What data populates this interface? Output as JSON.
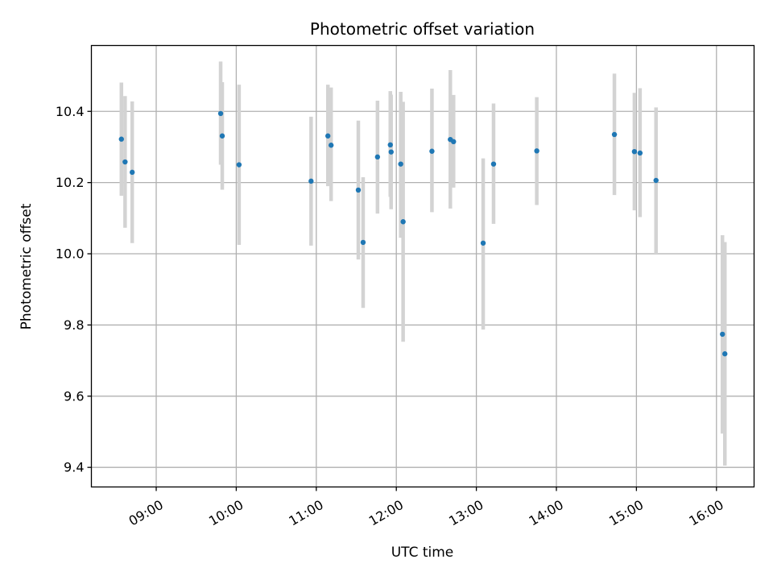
{
  "chart_data": {
    "type": "scatter",
    "title": "Photometric offset variation",
    "xlabel": "UTC time",
    "ylabel": "Photometric offset",
    "x_unit": "hours since 00:00 UTC",
    "xlim": [
      8.19,
      16.47
    ],
    "ylim": [
      9.345,
      10.585
    ],
    "grid": true,
    "legend": "none",
    "x_ticks": [
      {
        "value": 9,
        "label": "09:00"
      },
      {
        "value": 10,
        "label": "10:00"
      },
      {
        "value": 11,
        "label": "11:00"
      },
      {
        "value": 12,
        "label": "12:00"
      },
      {
        "value": 13,
        "label": "13:00"
      },
      {
        "value": 14,
        "label": "14:00"
      },
      {
        "value": 15,
        "label": "15:00"
      },
      {
        "value": 16,
        "label": "16:00"
      }
    ],
    "y_ticks": [
      {
        "value": 9.4,
        "label": "9.4"
      },
      {
        "value": 9.6,
        "label": "9.6"
      },
      {
        "value": 9.8,
        "label": "9.8"
      },
      {
        "value": 10.0,
        "label": "10.0"
      },
      {
        "value": 10.2,
        "label": "10.2"
      },
      {
        "value": 10.4,
        "label": "10.4"
      }
    ],
    "marker_color": "#1f77b4",
    "errorbar_color": "#d3d3d3",
    "grid_color": "#b0b0b0",
    "points": [
      {
        "x": 8.565,
        "y": 10.322,
        "low": 10.163,
        "high": 10.481
      },
      {
        "x": 8.611,
        "y": 10.258,
        "low": 10.073,
        "high": 10.443
      },
      {
        "x": 8.7,
        "y": 10.229,
        "low": 10.03,
        "high": 10.428
      },
      {
        "x": 9.805,
        "y": 10.394,
        "low": 10.25,
        "high": 10.54
      },
      {
        "x": 9.825,
        "y": 10.331,
        "low": 10.18,
        "high": 10.482
      },
      {
        "x": 10.035,
        "y": 10.25,
        "low": 10.025,
        "high": 10.475
      },
      {
        "x": 10.935,
        "y": 10.204,
        "low": 10.023,
        "high": 10.385
      },
      {
        "x": 11.145,
        "y": 10.331,
        "low": 10.19,
        "high": 10.475
      },
      {
        "x": 11.185,
        "y": 10.305,
        "low": 10.148,
        "high": 10.467
      },
      {
        "x": 11.525,
        "y": 10.179,
        "low": 9.984,
        "high": 10.374
      },
      {
        "x": 11.585,
        "y": 10.032,
        "low": 9.848,
        "high": 10.215
      },
      {
        "x": 11.765,
        "y": 10.272,
        "low": 10.113,
        "high": 10.43
      },
      {
        "x": 11.925,
        "y": 10.306,
        "low": 10.16,
        "high": 10.457
      },
      {
        "x": 11.935,
        "y": 10.286,
        "low": 10.125,
        "high": 10.447
      },
      {
        "x": 12.055,
        "y": 10.252,
        "low": 10.045,
        "high": 10.455
      },
      {
        "x": 12.085,
        "y": 10.09,
        "low": 9.753,
        "high": 10.427
      },
      {
        "x": 12.445,
        "y": 10.288,
        "low": 10.117,
        "high": 10.464
      },
      {
        "x": 12.675,
        "y": 10.321,
        "low": 10.127,
        "high": 10.516
      },
      {
        "x": 12.715,
        "y": 10.315,
        "low": 10.186,
        "high": 10.446
      },
      {
        "x": 13.085,
        "y": 10.03,
        "low": 9.787,
        "high": 10.268
      },
      {
        "x": 13.215,
        "y": 10.252,
        "low": 10.084,
        "high": 10.422
      },
      {
        "x": 13.755,
        "y": 10.289,
        "low": 10.137,
        "high": 10.44
      },
      {
        "x": 14.725,
        "y": 10.335,
        "low": 10.165,
        "high": 10.506
      },
      {
        "x": 14.975,
        "y": 10.287,
        "low": 10.122,
        "high": 10.452
      },
      {
        "x": 15.045,
        "y": 10.283,
        "low": 10.103,
        "high": 10.465
      },
      {
        "x": 15.245,
        "y": 10.206,
        "low": 10.0,
        "high": 10.411
      },
      {
        "x": 16.075,
        "y": 9.774,
        "low": 9.495,
        "high": 10.052
      },
      {
        "x": 16.105,
        "y": 9.719,
        "low": 9.405,
        "high": 10.033
      }
    ]
  }
}
